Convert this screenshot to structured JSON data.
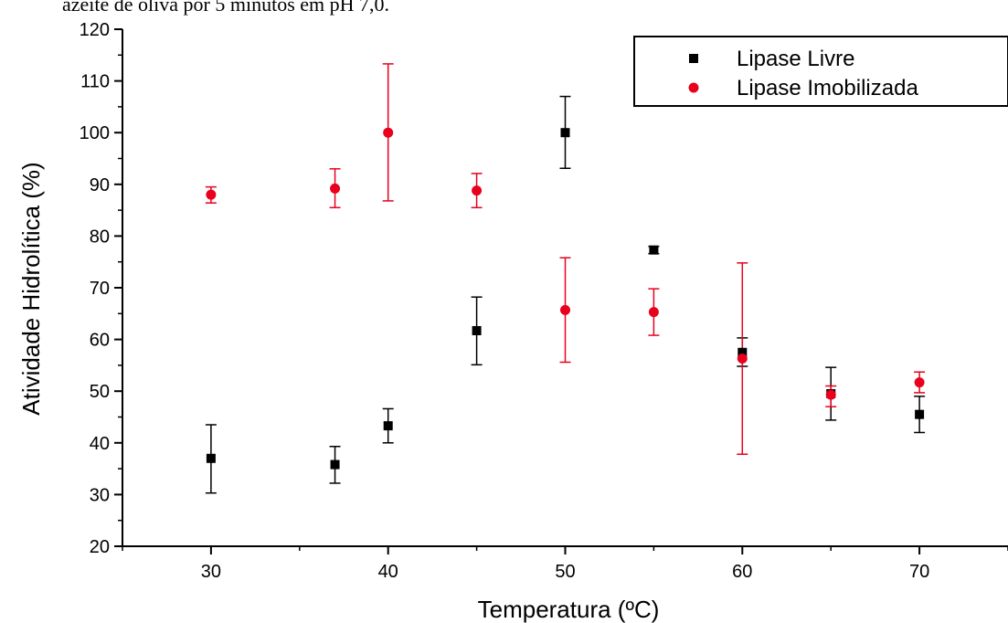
{
  "caption": "azeite de oliva por 5 minutos em pH 7,0.",
  "chart_data": {
    "type": "scatter",
    "title": "",
    "xlabel": "Temperatura (ºC)",
    "ylabel": "Atividade Hidrolítica (%)",
    "xlim": [
      25,
      75
    ],
    "ylim": [
      20,
      120
    ],
    "xticks": [
      "30",
      "40",
      "50",
      "60",
      "70"
    ],
    "xtick_values": [
      30,
      40,
      50,
      60,
      70
    ],
    "yticks": [
      "20",
      "30",
      "40",
      "50",
      "60",
      "70",
      "80",
      "90",
      "100",
      "110",
      "120"
    ],
    "ytick_values": [
      20,
      30,
      40,
      50,
      60,
      70,
      80,
      90,
      100,
      110,
      120
    ],
    "grid": false,
    "legend_position": "top-right",
    "series": [
      {
        "name": "Lipase Livre",
        "marker": "square",
        "color": "#000000",
        "points": [
          {
            "x": 30,
            "y": 37.0,
            "lo": 30.3,
            "hi": 43.5
          },
          {
            "x": 37,
            "y": 35.8,
            "lo": 32.2,
            "hi": 39.3
          },
          {
            "x": 40,
            "y": 43.3,
            "lo": 40.0,
            "hi": 46.6
          },
          {
            "x": 45,
            "y": 61.7,
            "lo": 55.1,
            "hi": 68.2
          },
          {
            "x": 50,
            "y": 100.0,
            "lo": 93.1,
            "hi": 107.0
          },
          {
            "x": 55,
            "y": 77.3,
            "lo": 76.6,
            "hi": 78.0
          },
          {
            "x": 60,
            "y": 57.5,
            "lo": 54.8,
            "hi": 60.3
          },
          {
            "x": 65,
            "y": 49.5,
            "lo": 44.4,
            "hi": 54.6
          },
          {
            "x": 70,
            "y": 45.5,
            "lo": 42.0,
            "hi": 49.0
          }
        ]
      },
      {
        "name": "Lipase Imobilizada",
        "marker": "circle",
        "color": "#e8001c",
        "points": [
          {
            "x": 30,
            "y": 88.0,
            "lo": 86.4,
            "hi": 89.5
          },
          {
            "x": 37,
            "y": 89.2,
            "lo": 85.5,
            "hi": 93.0
          },
          {
            "x": 40,
            "y": 100.0,
            "lo": 86.8,
            "hi": 113.3
          },
          {
            "x": 45,
            "y": 88.8,
            "lo": 85.5,
            "hi": 92.1
          },
          {
            "x": 50,
            "y": 65.7,
            "lo": 55.6,
            "hi": 75.8
          },
          {
            "x": 55,
            "y": 65.3,
            "lo": 60.8,
            "hi": 69.8
          },
          {
            "x": 60,
            "y": 56.3,
            "lo": 37.8,
            "hi": 74.8
          },
          {
            "x": 65,
            "y": 49.3,
            "lo": 47.0,
            "hi": 51.0
          },
          {
            "x": 70,
            "y": 51.7,
            "lo": 49.7,
            "hi": 53.7
          }
        ]
      }
    ]
  }
}
